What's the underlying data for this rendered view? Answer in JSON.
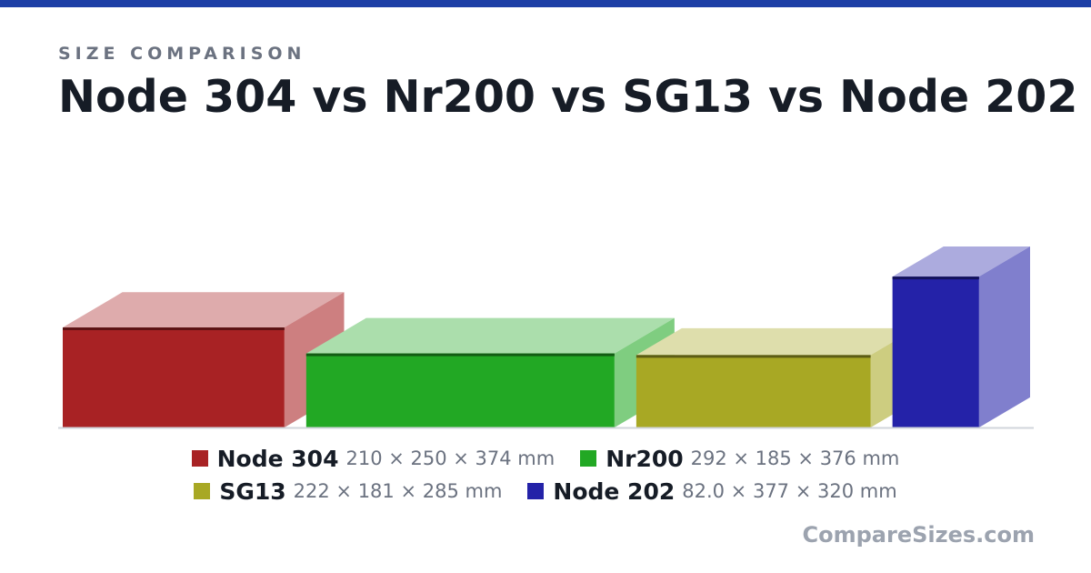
{
  "header": {
    "eyebrow": "SIZE COMPARISON",
    "title": "Node 304 vs Nr200 vs SG13 vs Node 202"
  },
  "accent_color": "#1d3fa6",
  "brand": "CompareSizes.com",
  "chart_data": {
    "type": "bar",
    "style": "3d-box",
    "units": "mm",
    "series": [
      {
        "name": "Node 304",
        "width": 210,
        "height": 250,
        "depth": 374,
        "dims_label": "210 × 250 × 374 mm",
        "color": "#a82224"
      },
      {
        "name": "Nr200",
        "width": 292,
        "height": 185,
        "depth": 376,
        "dims_label": "292 × 185 × 376 mm",
        "color": "#22a824"
      },
      {
        "name": "SG13",
        "width": 222,
        "height": 181,
        "depth": 285,
        "dims_label": "222 × 181 × 285 mm",
        "color": "#a8a824"
      },
      {
        "name": "Node 202",
        "width": 82.0,
        "height": 377,
        "depth": 320,
        "dims_label": "82.0 × 377 × 320 mm",
        "color": "#2422a8"
      }
    ],
    "legend_position": "bottom"
  }
}
